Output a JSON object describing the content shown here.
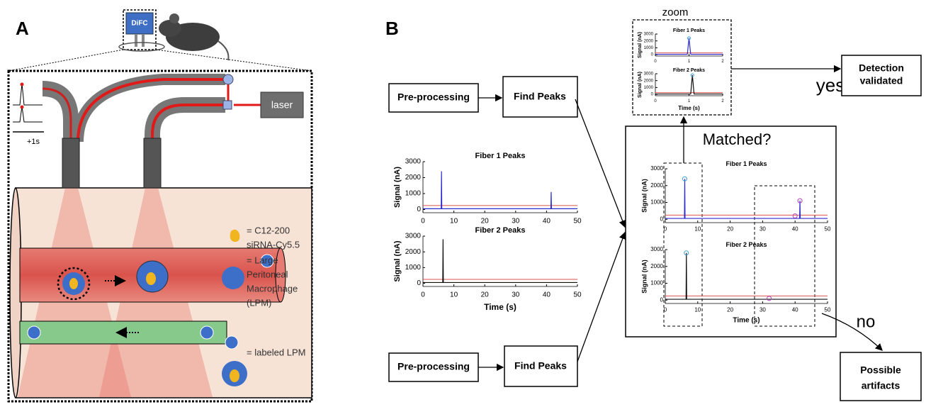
{
  "panel_a": {
    "label": "A",
    "device": "DiFC",
    "laser": "laser",
    "time_scale": "+1s",
    "legend": [
      [
        "= C12-200",
        "siRNA-Cy5.5"
      ],
      [
        "= Large",
        "Peritoneal",
        "Macrophage",
        "(LPM)"
      ],
      [
        "= labeled LPM"
      ]
    ]
  },
  "panel_b": {
    "label": "B",
    "pipelines": [
      {
        "pre": "Pre-processing",
        "find": "Find Peaks"
      },
      {
        "pre": "Pre-processing",
        "find": "Find Peaks"
      }
    ],
    "zoom": "zoom",
    "matched": "Matched?",
    "yes": "yes",
    "no": "no",
    "validated": [
      "Detection",
      "validated"
    ],
    "artifacts": [
      "Possible",
      "artifacts"
    ]
  },
  "chart_data": [
    {
      "type": "line",
      "title": "Fiber 1 Peaks",
      "y_label": "Signal (nA)",
      "x": [
        0,
        5.9,
        6,
        6.1,
        41.4,
        41.5,
        41.6,
        50
      ],
      "values": [
        50,
        50,
        2400,
        50,
        50,
        1100,
        50,
        50
      ],
      "color": "#2b2bd0",
      "threshold": 250,
      "xlim": [
        0,
        50
      ],
      "ylim": [
        -200,
        3000
      ],
      "xticks": [
        0,
        10,
        20,
        30,
        40,
        50
      ],
      "yticks": [
        0,
        1000,
        2000,
        3000
      ]
    },
    {
      "type": "line",
      "title": "Fiber 2 Peaks",
      "y_label": "Signal (nA)",
      "x_label": "Time (s)",
      "x": [
        0,
        6.4,
        6.5,
        6.6,
        50
      ],
      "values": [
        50,
        50,
        2800,
        50,
        50
      ],
      "color": "#111111",
      "threshold": 250,
      "xlim": [
        0,
        50
      ],
      "ylim": [
        -200,
        3000
      ],
      "xticks": [
        0,
        10,
        20,
        30,
        40,
        50
      ],
      "yticks": [
        0,
        1000,
        2000,
        3000
      ]
    },
    {
      "type": "line",
      "title": "Fiber 1 Peaks",
      "y_label": "Signal (nA)",
      "x": [
        0,
        5.9,
        6,
        6.1,
        41.4,
        41.5,
        41.6,
        50
      ],
      "values": [
        50,
        50,
        2400,
        50,
        50,
        1100,
        50,
        50
      ],
      "color": "#2b2bd0",
      "threshold": 250,
      "peaks": {
        "x": [
          6,
          40,
          41.5
        ],
        "values": [
          2400,
          200,
          1100
        ]
      },
      "xlim": [
        0,
        50
      ],
      "ylim": [
        -200,
        3000
      ],
      "xticks": [
        0,
        10,
        20,
        30,
        40,
        50
      ],
      "yticks": [
        0,
        1000,
        2000,
        3000
      ]
    },
    {
      "type": "line",
      "title": "Fiber 2 Peaks",
      "y_label": "Signal (nA)",
      "x_label": "Time (s)",
      "x": [
        0,
        6.4,
        6.5,
        6.6,
        50
      ],
      "values": [
        50,
        50,
        2800,
        50,
        50
      ],
      "color": "#111111",
      "threshold": 250,
      "peaks": {
        "x": [
          6.5,
          32
        ],
        "values": [
          2800,
          100
        ]
      },
      "xlim": [
        0,
        50
      ],
      "ylim": [
        -200,
        3000
      ],
      "xticks": [
        0,
        10,
        20,
        30,
        40,
        50
      ],
      "yticks": [
        0,
        1000,
        2000,
        3000
      ]
    },
    {
      "type": "line",
      "title": "Fiber 1 Peaks",
      "y_label": "Signal (nA)",
      "x": [
        0,
        0.95,
        1,
        1.05,
        2
      ],
      "values": [
        50,
        50,
        2400,
        50,
        50
      ],
      "color": "#2b2bd0",
      "threshold": 250,
      "peaks": {
        "x": [
          1
        ],
        "values": [
          2400
        ]
      },
      "xlim": [
        0,
        2
      ],
      "ylim": [
        -200,
        3000
      ],
      "xticks": [
        0,
        1,
        2
      ],
      "yticks": [
        0,
        1000,
        2000,
        3000
      ]
    },
    {
      "type": "line",
      "title": "Fiber 2 Peaks",
      "y_label": "Signal (nA)",
      "x_label": "Time (s)",
      "x": [
        0,
        1.05,
        1.1,
        1.15,
        2
      ],
      "values": [
        50,
        50,
        2800,
        50,
        50
      ],
      "color": "#111111",
      "threshold": 250,
      "peaks": {
        "x": [
          1.1
        ],
        "values": [
          2800
        ]
      },
      "xlim": [
        0,
        2
      ],
      "ylim": [
        -200,
        3000
      ],
      "xticks": [
        0,
        1,
        2
      ],
      "yticks": [
        0,
        1000,
        2000,
        3000
      ]
    }
  ]
}
